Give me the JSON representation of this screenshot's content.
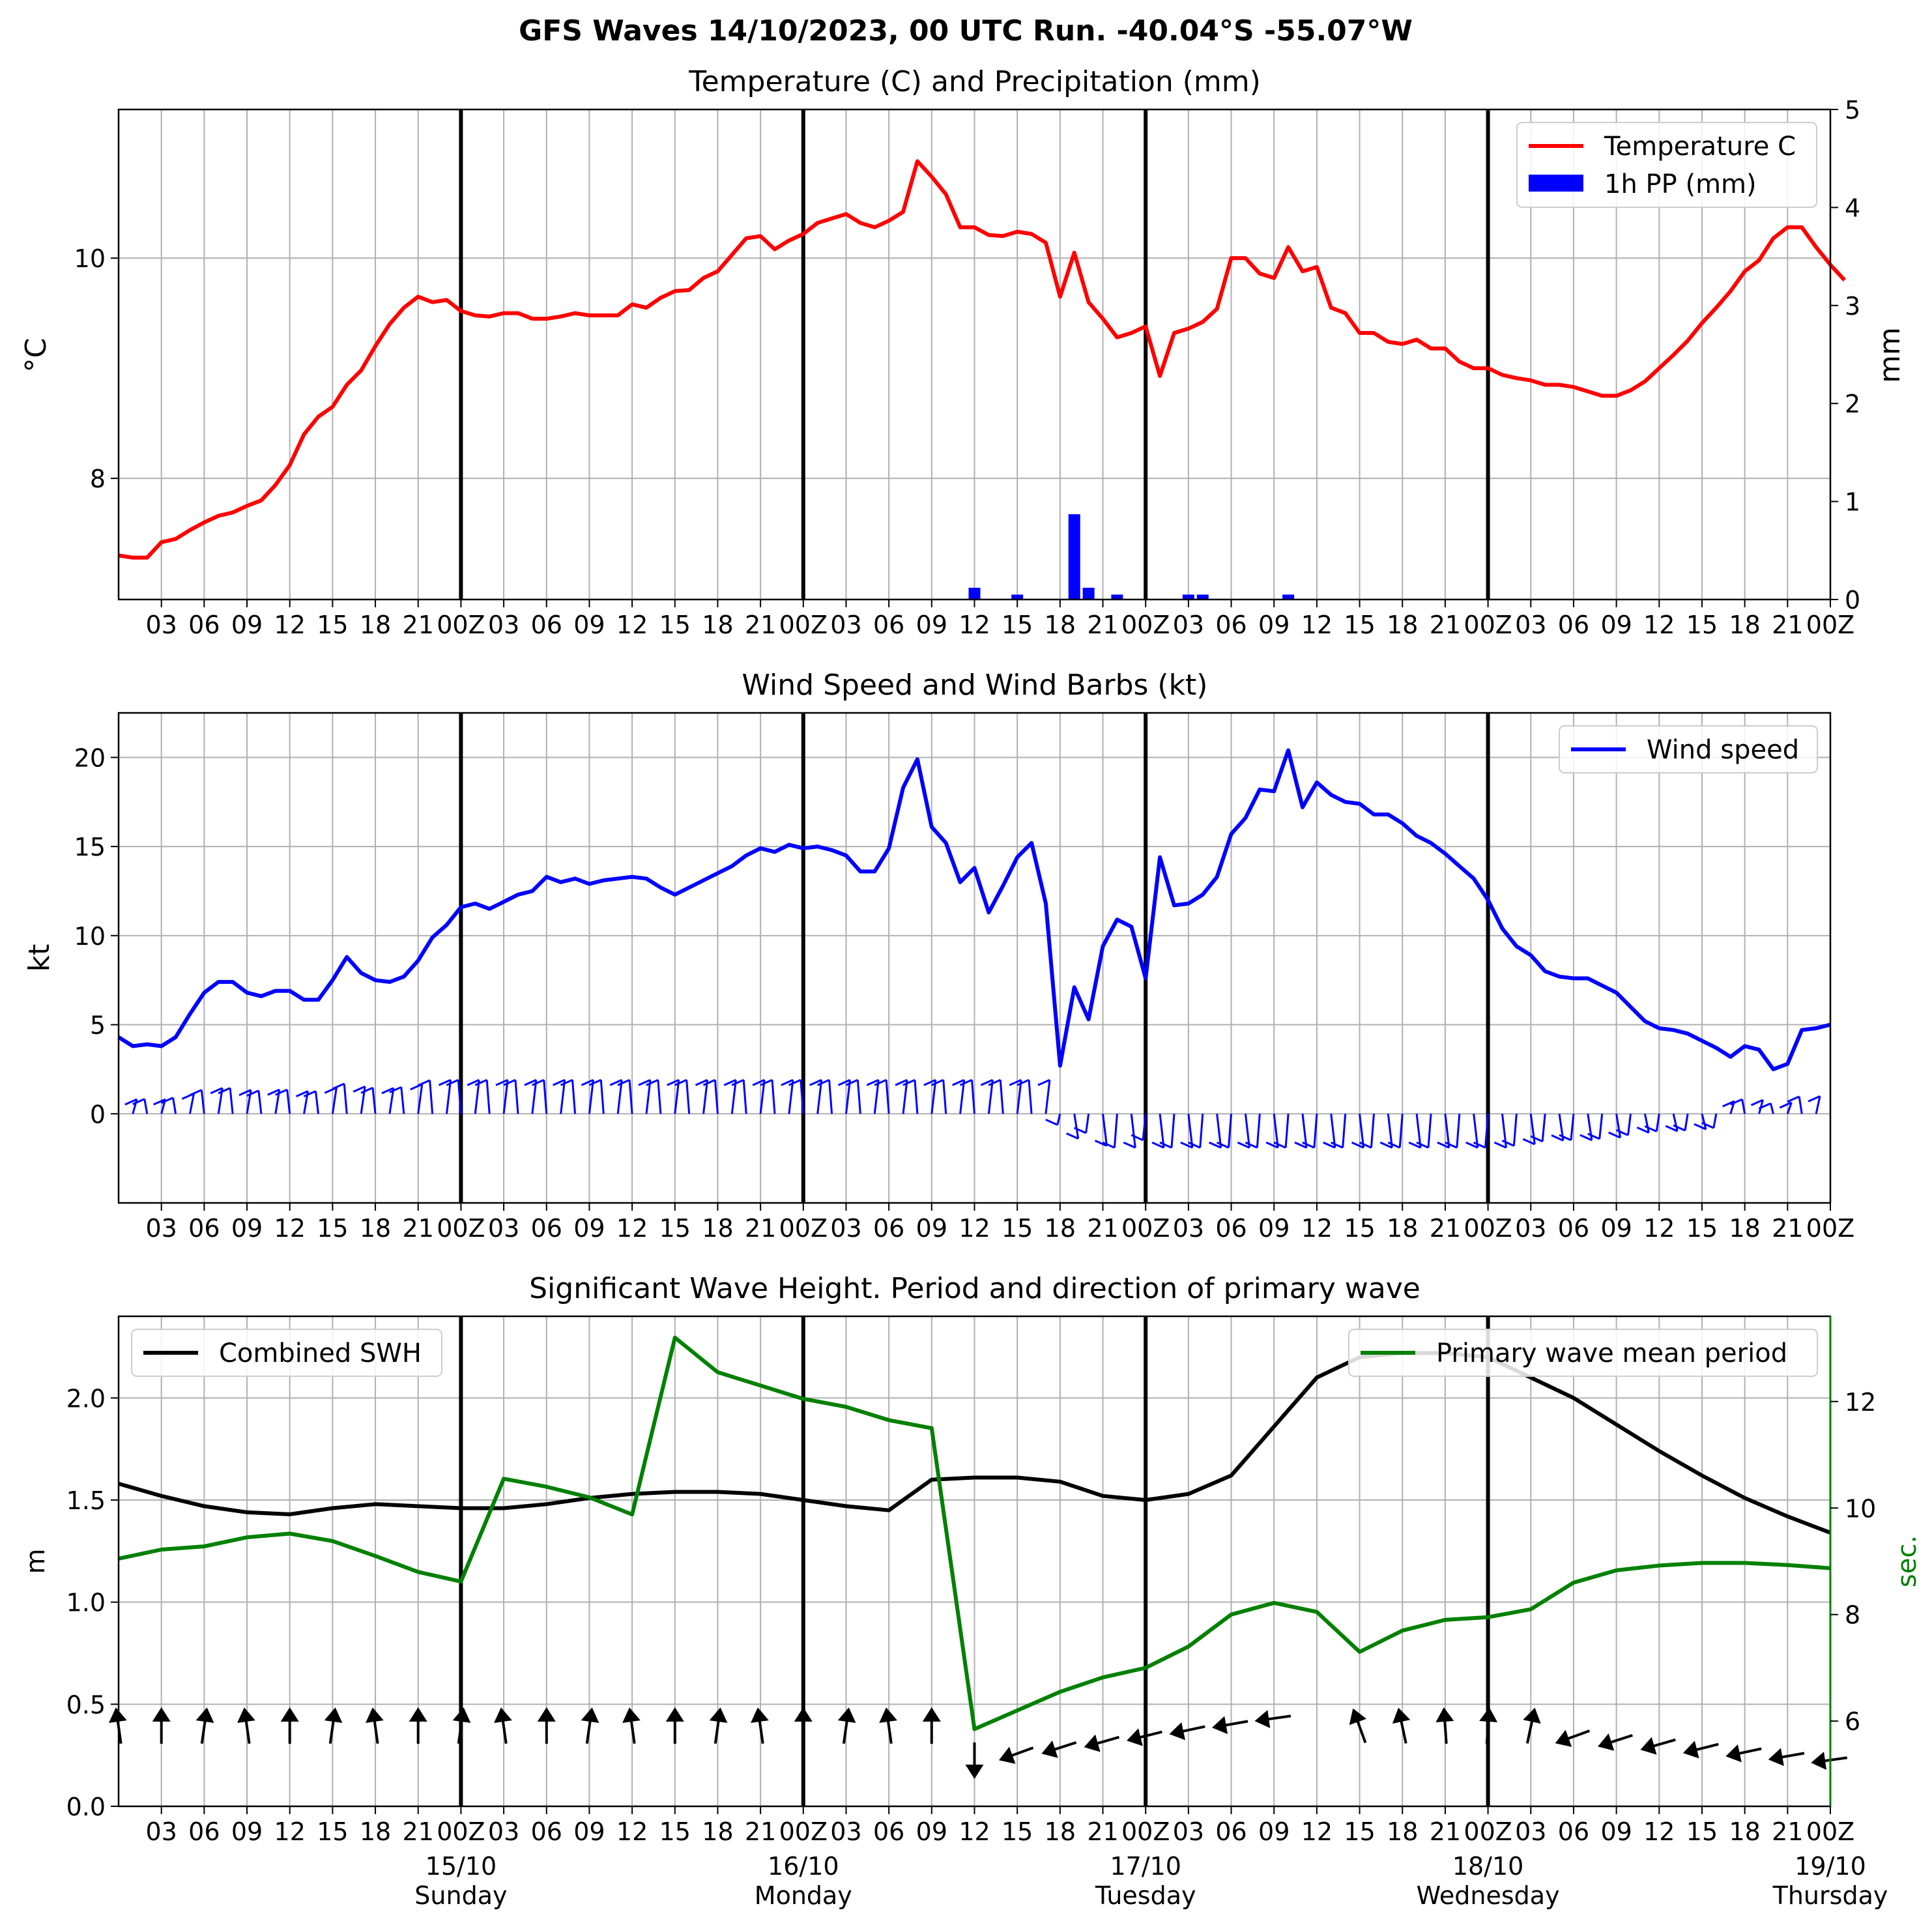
{
  "suptitle": "GFS Waves 14/10/2023, 00 UTC Run. -40.04°S -55.07°W",
  "tick_labels": [
    "03",
    "06",
    "09",
    "12",
    "15",
    "18",
    "21",
    "00Z",
    "03",
    "06",
    "09",
    "12",
    "15",
    "18",
    "21",
    "00Z",
    "03",
    "06",
    "09",
    "12",
    "15",
    "18",
    "21",
    "00Z",
    "03",
    "06",
    "09",
    "12",
    "15",
    "18",
    "21",
    "00Z",
    "03",
    "06",
    "09",
    "12",
    "15",
    "18",
    "21",
    "00Z"
  ],
  "date_labels": [
    {
      "date": "15/10",
      "day": "Sunday"
    },
    {
      "date": "16/10",
      "day": "Monday"
    },
    {
      "date": "17/10",
      "day": "Tuesday"
    },
    {
      "date": "18/10",
      "day": "Wednesday"
    },
    {
      "date": "19/10",
      "day": "Thursday"
    }
  ],
  "colors": {
    "temperature": "#ff0000",
    "precip": "#0000ff",
    "wind": "#0000ff",
    "swh": "#000000",
    "period": "#008000",
    "grid": "#b0b0b0"
  },
  "chart_data": [
    {
      "type": "line",
      "title": "Temperature (C) and Precipitation (mm)",
      "ylabel": "°C",
      "y2label": "mm",
      "ylim": [
        6.9,
        11.35
      ],
      "y2lim": [
        0,
        5
      ],
      "yticks": [
        8,
        10
      ],
      "y2ticks": [
        0,
        1,
        2,
        3,
        4,
        5
      ],
      "xlim_hours": [
        0,
        120
      ],
      "grid": true,
      "legend_position": "top-right",
      "series": [
        {
          "name": "Temperature C",
          "type": "line",
          "step_hours": 1,
          "values": [
            7.3,
            7.28,
            7.28,
            7.42,
            7.45,
            7.53,
            7.6,
            7.66,
            7.69,
            7.75,
            7.8,
            7.94,
            8.12,
            8.4,
            8.56,
            8.65,
            8.85,
            8.98,
            9.2,
            9.4,
            9.55,
            9.65,
            9.6,
            9.62,
            9.52,
            9.48,
            9.47,
            9.5,
            9.5,
            9.45,
            9.45,
            9.47,
            9.5,
            9.48,
            9.48,
            9.48,
            9.58,
            9.55,
            9.64,
            9.7,
            9.71,
            9.82,
            9.88,
            10.03,
            10.18,
            10.2,
            10.08,
            10.16,
            10.22,
            10.32,
            10.36,
            10.4,
            10.32,
            10.28,
            10.34,
            10.42,
            10.88,
            10.74,
            10.58,
            10.28,
            10.28,
            10.21,
            10.2,
            10.24,
            10.22,
            10.14,
            9.65,
            10.05,
            9.6,
            9.45,
            9.28,
            9.32,
            9.38,
            8.93,
            9.32,
            9.36,
            9.42,
            9.54,
            10.0,
            10.0,
            9.86,
            9.82,
            10.1,
            9.88,
            9.92,
            9.55,
            9.5,
            9.32,
            9.32,
            9.24,
            9.22,
            9.26,
            9.18,
            9.18,
            9.06,
            9.0,
            9.0,
            8.94,
            8.91,
            8.89,
            8.85,
            8.85,
            8.83,
            8.79,
            8.75,
            8.75,
            8.8,
            8.88,
            9.0,
            9.12,
            9.25,
            9.41,
            9.55,
            9.7,
            9.88,
            9.98,
            10.18,
            10.28,
            10.28,
            10.1,
            9.94,
            9.8
          ]
        },
        {
          "name": "1h PP (mm)",
          "type": "bar",
          "axis": "right",
          "bars": [
            {
              "hour": 60,
              "value": 0.12
            },
            {
              "hour": 63,
              "value": 0.05
            },
            {
              "hour": 67,
              "value": 0.87
            },
            {
              "hour": 68,
              "value": 0.12
            },
            {
              "hour": 70,
              "value": 0.05
            },
            {
              "hour": 75,
              "value": 0.05
            },
            {
              "hour": 76,
              "value": 0.05
            },
            {
              "hour": 82,
              "value": 0.05
            }
          ]
        }
      ]
    },
    {
      "type": "line",
      "title": "Wind Speed and Wind Barbs (kt)",
      "ylabel": "kt",
      "ylim": [
        -5,
        22.5
      ],
      "yticks": [
        0,
        5,
        10,
        15,
        20
      ],
      "xlim_hours": [
        0,
        120
      ],
      "grid": true,
      "legend_position": "top-right",
      "series": [
        {
          "name": "Wind speed",
          "step_hours": 1,
          "values": [
            4.3,
            3.8,
            3.9,
            3.8,
            4.3,
            5.6,
            6.8,
            7.4,
            7.4,
            6.8,
            6.6,
            6.9,
            6.9,
            6.4,
            6.4,
            7.5,
            8.8,
            7.9,
            7.5,
            7.4,
            7.7,
            8.6,
            9.9,
            10.6,
            11.6,
            11.8,
            11.5,
            11.9,
            12.3,
            12.5,
            13.3,
            13.0,
            13.2,
            12.9,
            13.1,
            13.2,
            13.3,
            13.2,
            12.7,
            12.3,
            12.7,
            13.1,
            13.5,
            13.9,
            14.5,
            14.9,
            14.7,
            15.1,
            14.9,
            15.0,
            14.8,
            14.5,
            13.6,
            13.6,
            14.9,
            18.3,
            19.9,
            16.1,
            15.2,
            13.0,
            13.8,
            11.3,
            12.8,
            14.4,
            15.2,
            11.8,
            2.7,
            7.1,
            5.3,
            9.4,
            10.9,
            10.5,
            7.6,
            14.4,
            11.7,
            11.8,
            12.3,
            13.3,
            15.7,
            16.6,
            18.2,
            18.1,
            20.4,
            17.2,
            18.6,
            17.9,
            17.5,
            17.4,
            16.8,
            16.8,
            16.3,
            15.6,
            15.2,
            14.6,
            13.9,
            13.2,
            12.0,
            10.4,
            9.4,
            8.9,
            8.0,
            7.7,
            7.6,
            7.6,
            7.2,
            6.8,
            6.0,
            5.2,
            4.8,
            4.7,
            4.5,
            4.1,
            3.7,
            3.2,
            3.8,
            3.6,
            2.5,
            2.8,
            4.7,
            4.8,
            5.0
          ]
        }
      ]
    },
    {
      "type": "line",
      "title": "Significant Wave Height. Period and direction of primary wave",
      "ylabel": "m",
      "y2label": "sec.",
      "ylim": [
        0,
        2.4
      ],
      "y2lim": [
        4.4,
        13.6
      ],
      "yticks": [
        0.0,
        0.5,
        1.0,
        1.5,
        2.0
      ],
      "y2ticks": [
        6,
        8,
        10,
        12
      ],
      "xlim_hours": [
        0,
        120
      ],
      "grid": true,
      "series": [
        {
          "name": "Combined SWH",
          "step_hours": 3,
          "legend_position": "top-left",
          "values": [
            1.58,
            1.52,
            1.47,
            1.44,
            1.43,
            1.46,
            1.48,
            1.47,
            1.46,
            1.46,
            1.48,
            1.51,
            1.53,
            1.54,
            1.54,
            1.53,
            1.5,
            1.47,
            1.45,
            1.6,
            1.61,
            1.61,
            1.59,
            1.52,
            1.5,
            1.53,
            1.62,
            1.86,
            2.1,
            2.2,
            2.22,
            2.22,
            2.2,
            2.1,
            2.0,
            1.87,
            1.74,
            1.62,
            1.51,
            1.42,
            1.34
          ]
        },
        {
          "name": "Primary wave mean period",
          "axis": "right",
          "step_hours": 3,
          "legend_position": "top-right",
          "values": [
            9.05,
            9.22,
            9.28,
            9.45,
            9.52,
            9.38,
            9.1,
            8.8,
            8.62,
            10.55,
            10.4,
            10.2,
            9.88,
            13.2,
            12.55,
            12.3,
            12.05,
            11.9,
            11.65,
            11.5,
            5.85,
            6.2,
            6.55,
            6.82,
            7.0,
            7.4,
            8.0,
            8.22,
            8.05,
            7.3,
            7.7,
            7.9,
            7.95,
            8.1,
            8.6,
            8.83,
            8.92,
            8.97,
            8.97,
            8.93,
            8.87
          ]
        }
      ]
    }
  ]
}
